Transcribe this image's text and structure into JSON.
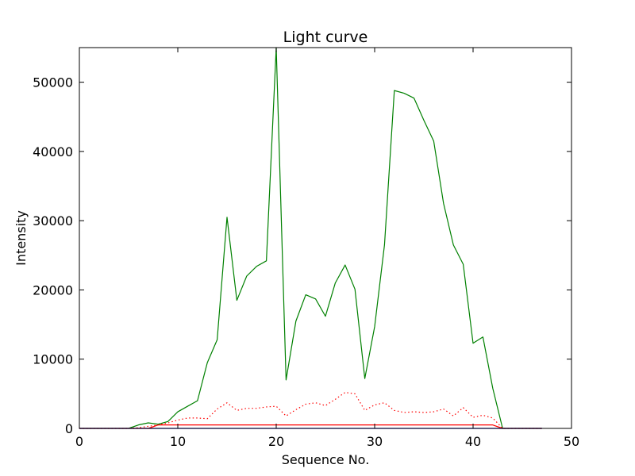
{
  "chart_data": {
    "type": "line",
    "title": "Light curve",
    "xlabel": "Sequence No.",
    "ylabel": "Intensity",
    "xlim": [
      0,
      50
    ],
    "ylim": [
      0,
      55000
    ],
    "xticks": [
      0,
      10,
      20,
      30,
      40,
      50
    ],
    "yticks": [
      0,
      10000,
      20000,
      30000,
      40000,
      50000
    ],
    "grid": false,
    "series": [
      {
        "color": "#008000",
        "style": "solid",
        "x": [
          0,
          1,
          2,
          3,
          4,
          5,
          6,
          7,
          8,
          9,
          10,
          11,
          12,
          13,
          14,
          15,
          16,
          17,
          18,
          19,
          20,
          21,
          22,
          23,
          24,
          25,
          26,
          27,
          28,
          29,
          30,
          31,
          32,
          33,
          34,
          35,
          36,
          37,
          38,
          39,
          40,
          41,
          42,
          43,
          44,
          45,
          46,
          47
        ],
        "values": [
          0,
          0,
          0,
          0,
          0,
          0,
          500,
          800,
          600,
          1000,
          2400,
          3200,
          4000,
          9500,
          12800,
          30500,
          18500,
          22000,
          23400,
          24200,
          55000,
          7000,
          15500,
          19300,
          18700,
          16200,
          21000,
          23600,
          20100,
          7200,
          14700,
          26500,
          48800,
          48400,
          47700,
          44500,
          41500,
          32500,
          26500,
          23700,
          12300,
          13200,
          5800,
          0,
          0,
          0,
          0,
          0
        ]
      },
      {
        "color": "#ff0000",
        "style": "dotted",
        "x": [
          0,
          1,
          2,
          3,
          4,
          5,
          6,
          7,
          8,
          9,
          10,
          11,
          12,
          13,
          14,
          15,
          16,
          17,
          18,
          19,
          20,
          21,
          22,
          23,
          24,
          25,
          26,
          27,
          28,
          29,
          30,
          31,
          32,
          33,
          34,
          35,
          36,
          37,
          38,
          39,
          40,
          41,
          42,
          43,
          44,
          45,
          46,
          47
        ],
        "values": [
          0,
          0,
          0,
          0,
          0,
          0,
          100,
          300,
          500,
          800,
          1200,
          1500,
          1500,
          1400,
          2800,
          3700,
          2600,
          2900,
          2900,
          3100,
          3200,
          1800,
          2700,
          3500,
          3700,
          3300,
          4200,
          5200,
          5000,
          2600,
          3400,
          3700,
          2600,
          2300,
          2400,
          2300,
          2400,
          2800,
          1800,
          3000,
          1600,
          1900,
          1500,
          0,
          0,
          0,
          0,
          0
        ]
      },
      {
        "color": "#ff0000",
        "style": "solid",
        "x": [
          0,
          1,
          2,
          3,
          4,
          5,
          6,
          7,
          8,
          9,
          10,
          11,
          12,
          13,
          14,
          15,
          16,
          17,
          18,
          19,
          20,
          21,
          22,
          23,
          24,
          25,
          26,
          27,
          28,
          29,
          30,
          31,
          32,
          33,
          34,
          35,
          36,
          37,
          38,
          39,
          40,
          41,
          42,
          43,
          44,
          45,
          46,
          47
        ],
        "values": [
          0,
          0,
          0,
          0,
          0,
          0,
          0,
          0,
          500,
          500,
          500,
          500,
          500,
          500,
          500,
          500,
          500,
          500,
          500,
          500,
          500,
          500,
          500,
          500,
          500,
          500,
          500,
          500,
          500,
          500,
          500,
          500,
          500,
          500,
          500,
          500,
          500,
          500,
          500,
          500,
          500,
          500,
          500,
          0,
          0,
          0,
          0,
          0
        ]
      },
      {
        "color": "#0000ff",
        "style": "solid",
        "x": [
          0,
          1,
          2,
          3,
          4,
          5,
          6,
          7,
          8,
          9,
          10,
          11,
          12,
          13,
          14,
          15,
          16,
          17,
          18,
          19,
          20,
          21,
          22,
          23,
          24,
          25,
          26,
          27,
          28,
          29,
          30,
          31,
          32,
          33,
          34,
          35,
          36,
          37,
          38,
          39,
          40,
          41,
          42,
          43,
          44,
          45,
          46,
          47
        ],
        "values": [
          0,
          0,
          0,
          0,
          0,
          0,
          0,
          0,
          0,
          0,
          0,
          0,
          0,
          0,
          0,
          0,
          0,
          0,
          0,
          0,
          0,
          0,
          0,
          0,
          0,
          0,
          0,
          0,
          0,
          0,
          0,
          0,
          0,
          0,
          0,
          0,
          0,
          0,
          0,
          0,
          0,
          0,
          0,
          0,
          0,
          0,
          0,
          0
        ]
      }
    ]
  }
}
